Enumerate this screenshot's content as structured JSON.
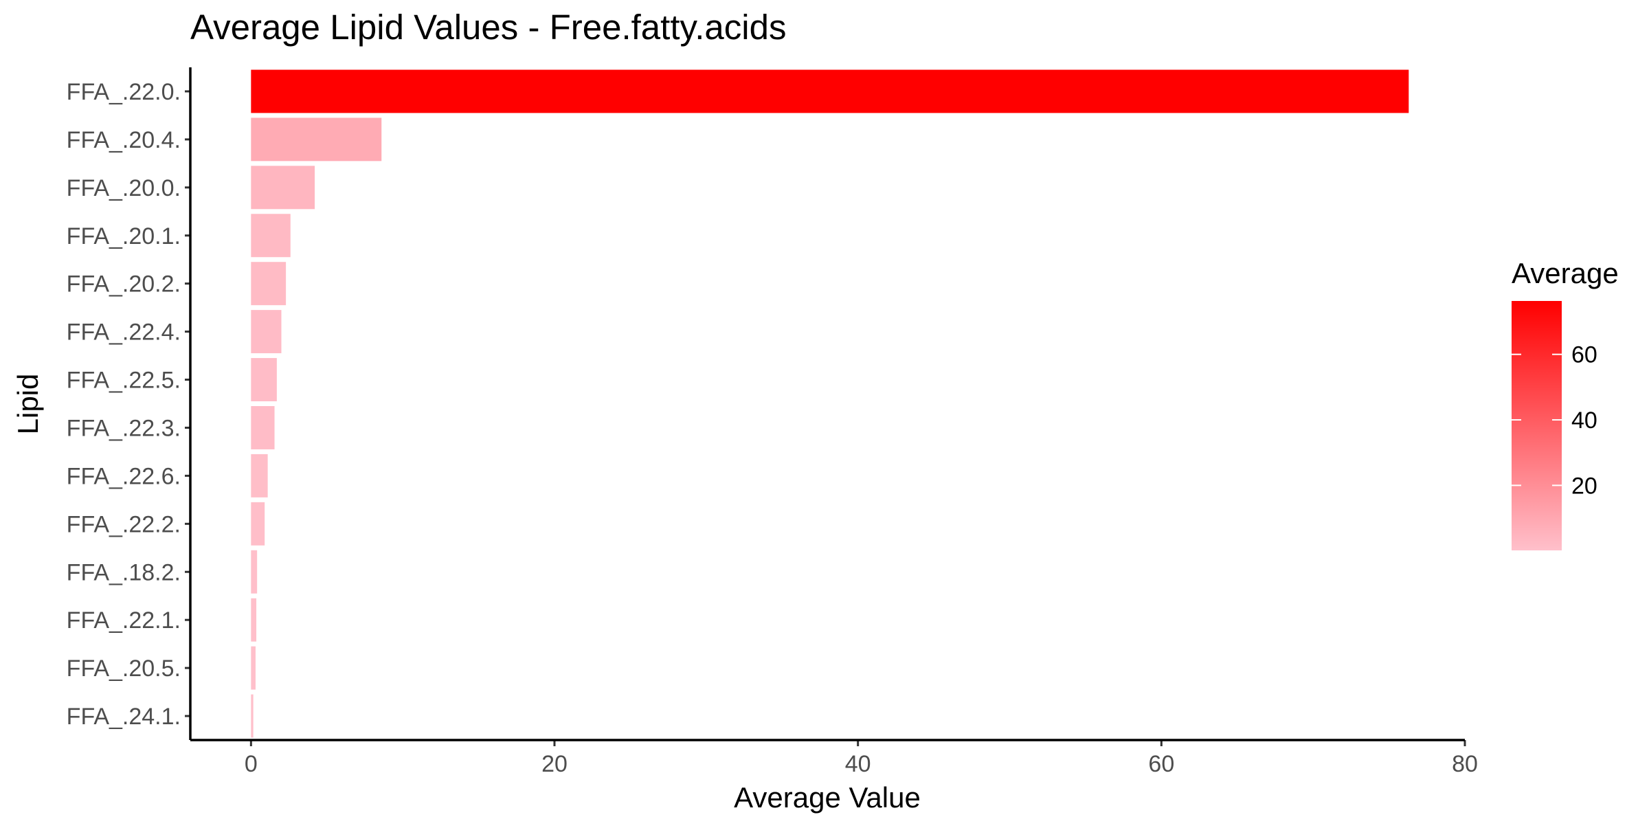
{
  "chart_data": {
    "type": "bar",
    "orientation": "horizontal",
    "title": "Average Lipid Values - Free.fatty.acids",
    "xlabel": "Average Value",
    "ylabel": "Lipid",
    "xlim": [
      -4,
      80
    ],
    "x_ticks": [
      0,
      20,
      40,
      60,
      80
    ],
    "grid": false,
    "categories": [
      "FFA_.22.0.",
      "FFA_.20.4.",
      "FFA_.20.0.",
      "FFA_.20.1.",
      "FFA_.20.2.",
      "FFA_.22.4.",
      "FFA_.22.5.",
      "FFA_.22.3.",
      "FFA_.22.6.",
      "FFA_.22.2.",
      "FFA_.18.2.",
      "FFA_.22.1.",
      "FFA_.20.5.",
      "FFA_.24.1."
    ],
    "values": [
      76.3,
      8.6,
      4.2,
      2.6,
      2.3,
      2.0,
      1.7,
      1.55,
      1.1,
      0.9,
      0.4,
      0.35,
      0.3,
      0.15
    ],
    "legend": {
      "title": "Average",
      "placement": "right",
      "ticks": [
        20,
        40,
        60
      ],
      "range": [
        0.15,
        76.3
      ],
      "low_color": "#ffc0cb",
      "high_color": "#ff0000"
    }
  }
}
